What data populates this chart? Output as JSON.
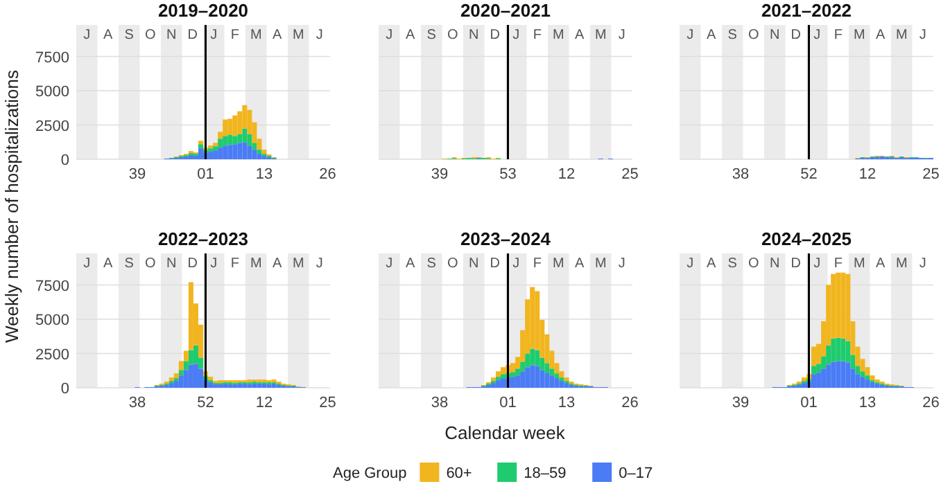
{
  "chart_data": [
    {
      "type": "bar",
      "title": "2019–2020",
      "ylabel": "Weekly number of hospitalizations",
      "stacked": true,
      "grid": "y",
      "ylim": [
        0,
        9800
      ],
      "yticks": [
        0,
        2500,
        5000,
        7500
      ],
      "categories": [
        null,
        null,
        null,
        null,
        null,
        null,
        null,
        null,
        null,
        null,
        null,
        null,
        "39",
        null,
        null,
        null,
        null,
        null,
        null,
        null,
        null,
        null,
        null,
        null,
        null,
        null,
        "01",
        null,
        null,
        null,
        null,
        null,
        null,
        null,
        null,
        null,
        null,
        null,
        "13",
        null,
        null,
        null,
        null,
        null,
        null,
        null,
        null,
        null,
        null,
        null,
        null,
        "26"
      ],
      "series": [
        {
          "color": "#4b7cf5",
          "values": [
            0,
            0,
            0,
            0,
            0,
            0,
            0,
            0,
            0,
            0,
            0,
            0,
            0,
            0,
            0,
            0,
            0,
            0,
            50,
            50,
            100,
            150,
            200,
            300,
            250,
            800,
            500,
            550,
            650,
            850,
            1000,
            1050,
            1100,
            1200,
            1250,
            1000,
            700,
            400,
            250,
            150,
            50,
            0,
            0,
            0,
            0,
            0,
            0,
            0,
            0,
            0,
            0,
            0
          ]
        },
        {
          "color": "#1fcb6e",
          "values": [
            0,
            0,
            0,
            0,
            0,
            0,
            0,
            0,
            0,
            0,
            0,
            0,
            0,
            0,
            0,
            0,
            0,
            0,
            0,
            50,
            50,
            100,
            100,
            150,
            150,
            300,
            200,
            250,
            300,
            650,
            700,
            750,
            600,
            650,
            1000,
            850,
            500,
            300,
            150,
            100,
            50,
            0,
            0,
            0,
            0,
            0,
            0,
            0,
            0,
            0,
            0,
            0
          ]
        },
        {
          "color": "#f1b51f",
          "values": [
            0,
            0,
            0,
            0,
            0,
            0,
            0,
            0,
            0,
            0,
            0,
            0,
            0,
            0,
            0,
            0,
            0,
            0,
            0,
            0,
            50,
            50,
            100,
            150,
            100,
            250,
            150,
            200,
            250,
            500,
            1200,
            1150,
            1500,
            1650,
            1700,
            1750,
            1500,
            800,
            300,
            100,
            50,
            0,
            0,
            0,
            0,
            0,
            0,
            0,
            0,
            0,
            0,
            0
          ]
        }
      ],
      "annotations": [
        "J",
        "A",
        "S",
        "O",
        "N",
        "D",
        "J",
        "F",
        "M",
        "A",
        "M",
        "J"
      ],
      "ref_lines": [
        {
          "axis": "x",
          "value": "01",
          "color": "#000000"
        }
      ]
    },
    {
      "type": "bar",
      "title": "2020–2021",
      "stacked": true,
      "grid": "y",
      "tick_labels": "x",
      "ylim": [
        0,
        9800
      ],
      "yticks": [
        0,
        2500,
        5000,
        7500
      ],
      "categories": [
        null,
        null,
        null,
        null,
        null,
        null,
        null,
        null,
        null,
        null,
        null,
        null,
        "39",
        null,
        null,
        null,
        null,
        null,
        null,
        null,
        null,
        null,
        null,
        null,
        null,
        null,
        "53",
        null,
        null,
        null,
        null,
        null,
        null,
        null,
        null,
        null,
        null,
        null,
        "12",
        null,
        null,
        null,
        null,
        null,
        null,
        null,
        null,
        null,
        null,
        null,
        null,
        "25"
      ],
      "series": [
        {
          "color": "#4b7cf5",
          "values": [
            0,
            0,
            0,
            0,
            0,
            0,
            0,
            0,
            0,
            0,
            0,
            0,
            0,
            0,
            0,
            0,
            0,
            0,
            0,
            0,
            50,
            0,
            0,
            0,
            0,
            0,
            0,
            0,
            0,
            0,
            0,
            0,
            0,
            0,
            0,
            0,
            0,
            0,
            0,
            0,
            0,
            0,
            0,
            0,
            0,
            50,
            0,
            50,
            0,
            0,
            0,
            0
          ]
        },
        {
          "color": "#1fcb6e",
          "values": [
            0,
            0,
            0,
            0,
            0,
            0,
            0,
            0,
            0,
            0,
            0,
            0,
            0,
            0,
            50,
            50,
            0,
            50,
            100,
            50,
            50,
            100,
            50,
            0,
            50,
            0,
            0,
            0,
            0,
            0,
            0,
            0,
            0,
            0,
            0,
            0,
            0,
            0,
            0,
            0,
            0,
            0,
            0,
            0,
            0,
            0,
            0,
            0,
            0,
            0,
            0,
            0
          ]
        },
        {
          "color": "#f1b51f",
          "values": [
            0,
            0,
            0,
            0,
            0,
            0,
            0,
            0,
            0,
            0,
            0,
            0,
            0,
            50,
            0,
            100,
            50,
            50,
            0,
            100,
            50,
            0,
            100,
            50,
            50,
            0,
            0,
            0,
            0,
            0,
            0,
            0,
            0,
            0,
            0,
            0,
            0,
            0,
            0,
            0,
            0,
            0,
            0,
            0,
            0,
            0,
            0,
            0,
            0,
            0,
            0,
            0
          ]
        }
      ],
      "annotations": [
        "J",
        "A",
        "S",
        "O",
        "N",
        "D",
        "J",
        "F",
        "M",
        "A",
        "M",
        "J"
      ],
      "ref_lines": [
        {
          "axis": "x",
          "value": "53",
          "color": "#000000"
        }
      ]
    },
    {
      "type": "bar",
      "title": "2021–2022",
      "stacked": true,
      "grid": "y",
      "tick_labels": "x",
      "ylim": [
        0,
        9800
      ],
      "yticks": [
        0,
        2500,
        5000,
        7500
      ],
      "categories": [
        null,
        null,
        null,
        null,
        null,
        null,
        null,
        null,
        null,
        null,
        null,
        null,
        "38",
        null,
        null,
        null,
        null,
        null,
        null,
        null,
        null,
        null,
        null,
        null,
        null,
        null,
        "52",
        null,
        null,
        null,
        null,
        null,
        null,
        null,
        null,
        null,
        null,
        null,
        "12",
        null,
        null,
        null,
        null,
        null,
        null,
        null,
        null,
        null,
        null,
        null,
        null,
        "25"
      ],
      "series": [
        {
          "color": "#4b7cf5",
          "values": [
            0,
            0,
            0,
            0,
            0,
            0,
            0,
            0,
            0,
            0,
            0,
            0,
            0,
            0,
            0,
            0,
            0,
            0,
            0,
            0,
            0,
            0,
            0,
            0,
            0,
            0,
            0,
            0,
            0,
            0,
            0,
            0,
            0,
            0,
            0,
            0,
            50,
            100,
            100,
            150,
            150,
            200,
            150,
            150,
            100,
            150,
            100,
            100,
            100,
            100,
            50,
            100
          ]
        },
        {
          "color": "#1fcb6e",
          "values": [
            0,
            0,
            0,
            0,
            0,
            0,
            0,
            0,
            0,
            0,
            0,
            0,
            0,
            0,
            0,
            0,
            0,
            0,
            0,
            0,
            0,
            0,
            0,
            0,
            0,
            0,
            0,
            0,
            0,
            0,
            0,
            0,
            0,
            0,
            0,
            0,
            0,
            50,
            0,
            50,
            50,
            0,
            50,
            50,
            0,
            50,
            0,
            50,
            50,
            0,
            50,
            0
          ]
        },
        {
          "color": "#f1b51f",
          "values": [
            0,
            0,
            0,
            0,
            0,
            0,
            0,
            0,
            0,
            0,
            0,
            0,
            0,
            0,
            0,
            0,
            0,
            0,
            0,
            0,
            0,
            0,
            0,
            0,
            0,
            0,
            0,
            0,
            0,
            0,
            0,
            0,
            0,
            0,
            0,
            0,
            50,
            0,
            50,
            0,
            50,
            50,
            0,
            50,
            50,
            0,
            50,
            0,
            0,
            0,
            0,
            0
          ]
        }
      ],
      "annotations": [
        "J",
        "A",
        "S",
        "O",
        "N",
        "D",
        "J",
        "F",
        "M",
        "A",
        "M",
        "J"
      ],
      "ref_lines": [
        {
          "axis": "x",
          "value": "52",
          "color": "#000000"
        }
      ]
    },
    {
      "type": "bar",
      "title": "2022–2023",
      "stacked": true,
      "grid": "y",
      "ylim": [
        0,
        9800
      ],
      "yticks": [
        0,
        2500,
        5000,
        7500
      ],
      "categories": [
        null,
        null,
        null,
        null,
        null,
        null,
        null,
        null,
        null,
        null,
        null,
        null,
        "38",
        null,
        null,
        null,
        null,
        null,
        null,
        null,
        null,
        null,
        null,
        null,
        null,
        null,
        "52",
        null,
        null,
        null,
        null,
        null,
        null,
        null,
        null,
        null,
        null,
        null,
        "12",
        null,
        null,
        null,
        null,
        null,
        null,
        null,
        null,
        null,
        null,
        null,
        null,
        "25"
      ],
      "series": [
        {
          "color": "#4b7cf5",
          "values": [
            0,
            0,
            0,
            0,
            0,
            0,
            0,
            0,
            0,
            0,
            0,
            0,
            50,
            0,
            50,
            50,
            100,
            150,
            200,
            350,
            500,
            900,
            1300,
            1700,
            1750,
            1400,
            600,
            400,
            250,
            250,
            300,
            250,
            250,
            300,
            300,
            250,
            300,
            300,
            300,
            250,
            300,
            200,
            150,
            100,
            100,
            50,
            50,
            0,
            0,
            0,
            0,
            0
          ]
        },
        {
          "color": "#1fcb6e",
          "values": [
            0,
            0,
            0,
            0,
            0,
            0,
            0,
            0,
            0,
            0,
            0,
            0,
            0,
            0,
            0,
            0,
            50,
            50,
            100,
            150,
            200,
            400,
            650,
            1050,
            1350,
            800,
            250,
            150,
            100,
            100,
            100,
            150,
            100,
            100,
            100,
            150,
            150,
            100,
            100,
            150,
            100,
            100,
            50,
            50,
            50,
            0,
            0,
            0,
            0,
            0,
            0,
            0
          ]
        },
        {
          "color": "#f1b51f",
          "values": [
            0,
            0,
            0,
            0,
            0,
            0,
            0,
            0,
            0,
            0,
            0,
            0,
            0,
            0,
            0,
            0,
            50,
            100,
            150,
            250,
            350,
            650,
            750,
            4950,
            3050,
            2400,
            350,
            250,
            150,
            200,
            150,
            150,
            200,
            150,
            150,
            200,
            150,
            200,
            200,
            150,
            200,
            150,
            100,
            100,
            50,
            50,
            0,
            0,
            0,
            0,
            0,
            0
          ]
        }
      ],
      "annotations": [
        "J",
        "A",
        "S",
        "O",
        "N",
        "D",
        "J",
        "F",
        "M",
        "A",
        "M",
        "J"
      ],
      "ref_lines": [
        {
          "axis": "x",
          "value": "52",
          "color": "#000000"
        }
      ]
    },
    {
      "type": "bar",
      "title": "2023–2024",
      "xlabel": "Calendar week",
      "stacked": true,
      "grid": "y",
      "tick_labels": "x",
      "ylim": [
        0,
        9800
      ],
      "yticks": [
        0,
        2500,
        5000,
        7500
      ],
      "categories": [
        null,
        null,
        null,
        null,
        null,
        null,
        null,
        null,
        null,
        null,
        null,
        null,
        "38",
        null,
        null,
        null,
        null,
        null,
        null,
        null,
        null,
        null,
        null,
        null,
        null,
        null,
        "01",
        null,
        null,
        null,
        null,
        null,
        null,
        null,
        null,
        null,
        null,
        null,
        "13",
        null,
        null,
        null,
        null,
        null,
        null,
        null,
        null,
        null,
        null,
        null,
        null,
        "26"
      ],
      "series": [
        {
          "color": "#4b7cf5",
          "values": [
            0,
            0,
            0,
            0,
            0,
            0,
            0,
            0,
            0,
            0,
            0,
            0,
            0,
            0,
            0,
            0,
            0,
            0,
            50,
            50,
            50,
            100,
            200,
            350,
            550,
            700,
            750,
            800,
            900,
            1200,
            1500,
            1650,
            1600,
            1300,
            1100,
            900,
            700,
            500,
            350,
            200,
            150,
            100,
            100,
            100,
            50,
            50,
            50,
            0,
            0,
            0,
            0,
            0
          ]
        },
        {
          "color": "#1fcb6e",
          "values": [
            0,
            0,
            0,
            0,
            0,
            0,
            0,
            0,
            0,
            0,
            0,
            0,
            0,
            0,
            0,
            0,
            0,
            0,
            0,
            0,
            0,
            50,
            100,
            150,
            250,
            300,
            300,
            350,
            500,
            700,
            1000,
            1200,
            1150,
            900,
            700,
            500,
            350,
            250,
            150,
            100,
            50,
            50,
            50,
            0,
            0,
            0,
            0,
            0,
            0,
            0,
            0,
            0
          ]
        },
        {
          "color": "#f1b51f",
          "values": [
            0,
            0,
            0,
            0,
            0,
            0,
            0,
            0,
            0,
            0,
            0,
            0,
            0,
            0,
            0,
            0,
            0,
            0,
            0,
            0,
            0,
            50,
            100,
            250,
            400,
            500,
            600,
            650,
            850,
            2300,
            3950,
            4500,
            4300,
            2750,
            2100,
            1300,
            750,
            450,
            250,
            150,
            100,
            100,
            50,
            50,
            0,
            0,
            0,
            0,
            0,
            0,
            0,
            0
          ]
        }
      ],
      "annotations": [
        "J",
        "A",
        "S",
        "O",
        "N",
        "D",
        "J",
        "F",
        "M",
        "A",
        "M",
        "J"
      ],
      "ref_lines": [
        {
          "axis": "x",
          "value": "01",
          "color": "#000000"
        }
      ]
    },
    {
      "type": "bar",
      "title": "2024–2025",
      "legend": "bottom",
      "legend_title": "Age Group",
      "stacked": true,
      "grid": "y",
      "tick_labels": "x",
      "ylim": [
        0,
        9800
      ],
      "yticks": [
        0,
        2500,
        5000,
        7500
      ],
      "categories": [
        null,
        null,
        null,
        null,
        null,
        null,
        null,
        null,
        null,
        null,
        null,
        null,
        "39",
        null,
        null,
        null,
        null,
        null,
        null,
        null,
        null,
        null,
        null,
        null,
        null,
        null,
        "01",
        null,
        null,
        null,
        null,
        null,
        null,
        null,
        null,
        null,
        null,
        null,
        "13",
        null,
        null,
        null,
        null,
        null,
        null,
        null,
        null,
        null,
        null,
        null,
        null,
        "26"
      ],
      "series": [
        {
          "name": "0–17",
          "color": "#4b7cf5",
          "values": [
            0,
            0,
            0,
            0,
            0,
            0,
            0,
            0,
            0,
            0,
            0,
            0,
            0,
            0,
            0,
            0,
            0,
            0,
            0,
            50,
            50,
            50,
            100,
            150,
            200,
            350,
            450,
            1000,
            1100,
            1400,
            1700,
            1900,
            1950,
            1950,
            1850,
            1400,
            1000,
            800,
            600,
            400,
            300,
            200,
            150,
            100,
            100,
            100,
            50,
            50,
            0,
            0,
            0,
            0
          ]
        },
        {
          "name": "18–59",
          "color": "#1fcb6e",
          "values": [
            0,
            0,
            0,
            0,
            0,
            0,
            0,
            0,
            0,
            0,
            0,
            0,
            0,
            0,
            0,
            0,
            0,
            0,
            0,
            0,
            0,
            0,
            50,
            50,
            100,
            150,
            200,
            600,
            650,
            900,
            1400,
            1700,
            1700,
            1650,
            1550,
            1000,
            600,
            400,
            300,
            150,
            100,
            100,
            50,
            50,
            50,
            0,
            0,
            0,
            0,
            0,
            0,
            0
          ]
        },
        {
          "name": "60+",
          "color": "#f1b51f",
          "values": [
            0,
            0,
            0,
            0,
            0,
            0,
            0,
            0,
            0,
            0,
            0,
            0,
            0,
            0,
            0,
            0,
            0,
            0,
            0,
            0,
            0,
            0,
            50,
            100,
            150,
            250,
            350,
            1400,
            1450,
            2550,
            4400,
            4700,
            4750,
            4800,
            4900,
            2450,
            1400,
            900,
            600,
            350,
            200,
            150,
            100,
            100,
            50,
            50,
            0,
            0,
            0,
            0,
            0,
            0
          ]
        }
      ],
      "annotations": [
        "J",
        "A",
        "S",
        "O",
        "N",
        "D",
        "J",
        "F",
        "M",
        "A",
        "M",
        "J"
      ],
      "ref_lines": [
        {
          "axis": "x",
          "value": "01",
          "color": "#000000"
        }
      ]
    }
  ]
}
